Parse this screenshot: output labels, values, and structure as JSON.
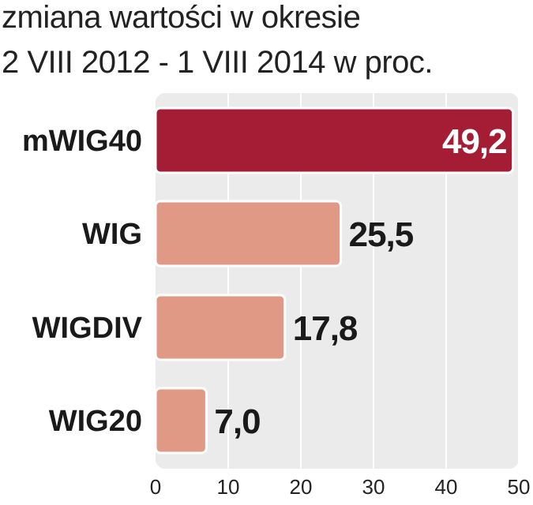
{
  "chart_data": {
    "type": "bar",
    "orientation": "horizontal",
    "title": "zmiana wartości w okresie",
    "subtitle": "2 VIII 2012 - 1 VIII 2014 w proc.",
    "categories": [
      "mWIG40",
      "WIG",
      "WIGDIV",
      "WIG20"
    ],
    "values": [
      49.2,
      25.5,
      17.8,
      7.0
    ],
    "value_labels": [
      "49,2",
      "25,5",
      "17,8",
      "7,0"
    ],
    "xlim": [
      0,
      50
    ],
    "x_ticks": [
      0,
      10,
      20,
      30,
      40,
      50
    ],
    "x_tick_labels": [
      "0",
      "10",
      "20",
      "30",
      "40",
      "50"
    ],
    "grid": true,
    "highlight_color": "#a51d35",
    "bar_color": "#df9985",
    "plot_background": "#ebebeb",
    "xlabel": "",
    "ylabel": ""
  }
}
